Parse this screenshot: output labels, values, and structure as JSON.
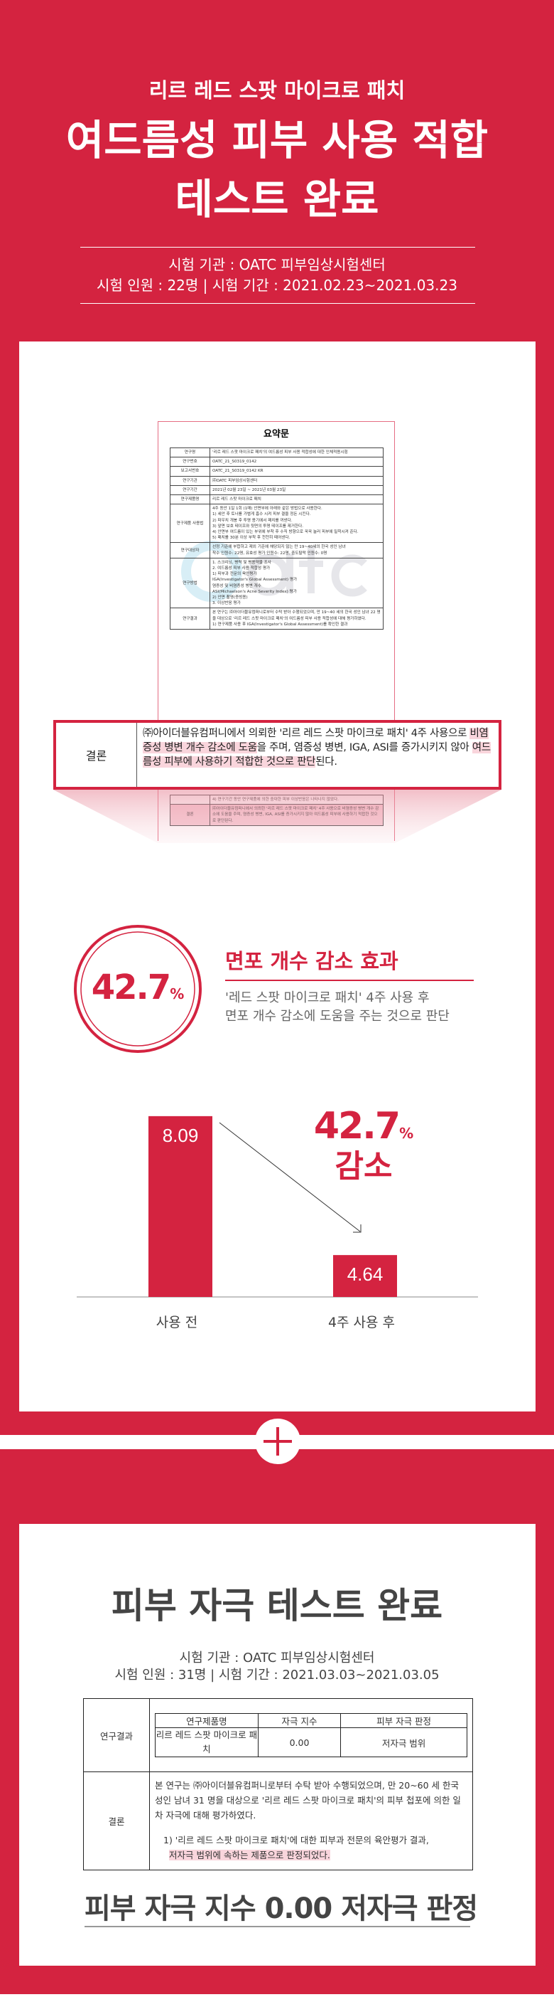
{
  "colors": {
    "accent": "#d42340",
    "text": "#444444",
    "highlight": "#f9d5dc"
  },
  "header": {
    "subtitle": "리르 레드 스팟 마이크로 패치",
    "title_line1": "여드름성 피부 사용 적합",
    "title_line2": "테스트 완료",
    "institution": "시험 기관 : OATC 피부임상시험센터",
    "participants_period": "시험 인원 : 22명 |  시험 기간 : 2021.02.23~2021.03.23"
  },
  "document": {
    "title": "요약문",
    "watermark": "oatc",
    "rows": [
      {
        "k": "연구명",
        "v": "'리르 레드 스팟 마이크로 패치'의 여드름성 피부 사용 적합성에 대한 인체적용시험"
      },
      {
        "k": "연구번호",
        "v": "OATC_21_S0319_0142"
      },
      {
        "k": "보고서번호",
        "v": "OATC_21_S0319_0142 KR"
      },
      {
        "k": "연구기관",
        "v": "㈜OATC 피부임상시험센터"
      },
      {
        "k": "연구기간",
        "v": "2021년 02월 23일 ~ 2021년 03월 23일"
      },
      {
        "k": "연구제품명",
        "v": "리르 레드 스팟 마이크로 패치"
      },
      {
        "k": "연구제품 사용법",
        "v": "4주 동안 1일 1회 (1매) 안면부에 아래와 같은 방법으로 사용한다.\n1) 세안 후 토너를 가볍게 흡수 시켜 피부 결을 정돈 시킨다.\n2) 파우치 개봉 후 투명 용기에서 패치를 꺼낸다.\n3) 앞면 보호 테이프와 뒷면의 투명 테이프를 제거한다.\n4) 안면부 여드름이 있는 부위에 부착 후 수직 방향으로 꾹꾹 눌러 피부에 밀착시켜 준다.\n5) 패치를 30분 이상 부착 후 천천히 떼어낸다."
      },
      {
        "k": "연구대상자",
        "v": "선정 기준에 부합하고 제외 기준에 해당되지 않는 만 19~40세의 한국 성인 남녀\n착수 인원수: 22명, 유효성 평가 인원수: 22명, 중도탈락 인원수: 0명"
      },
      {
        "k": "연구방법",
        "v": "1. 스크리닝, 병력 및 병용약물 조사\n2. 여드름성 피부 사용 적합성 평가\n 1) 피부과 전문의 육안평가\n   IGA(Investigator's Global Assessment) 평가\n   염증성 및 비염증성 병변 개수\n   ASI(Michaelson's Acne Severity Index) 평가\n 2) 안면 촬영(증빙용)\n3. 이상반응 평가"
      },
      {
        "k": "연구결과",
        "v": "본 연구는 ㈜아이더블유컴퍼니로부터 수탁 받아 수행되었으며, 만 19~40 세의 한국 성인 남녀 22 명을 대상으로 '리르 레드 스팟 마이크로 패치'의 여드름성 피부 사용 적합성에 대해 평가하였다.\n1) 연구제품 사용 후 IGA(Investigator's Global Assessment)를 확인한 결과\n\n\n\n\n\n\n4) 연구기간 동안 연구제품에 의한 중대한 피부 이상반응은 나타나지 않았다."
      },
      {
        "k": "결론",
        "v": "㈜아이더블유컴퍼니에서 의뢰한 '리르 레드 스팟 마이크로 패치' 4주 사용으로 비염증성 병변 개수 감소에 도움을 주며, 염증성 병변, IGA, ASI를 증가시키지 않아 여드름성 피부에 사용하기 적합한 것으로 판단된다."
      }
    ]
  },
  "conclusion_zoom": {
    "label": "결론",
    "p1": "㈜아이더블유컴퍼니에서 의뢰한 '리르 레드 스팟 마이크로 패치' 4주 사용으로 ",
    "h1": "비염증성 병변 개수 감소에 도움",
    "p2": "을 주며, 염증성 병변, IGA, ASI를 증가시키지 않아 ",
    "h2": "여드름성 피부에 사용하기 적합한 것으로 판단",
    "p3": "된다."
  },
  "effect": {
    "badge_value": "42.7",
    "badge_unit": "%",
    "title": "면포 개수 감소 효과",
    "desc1": "'레드 스팟 마이크로 패치' 4주 사용 후",
    "desc2": "면포 개수 감소에 도움을 주는 것으로 판단"
  },
  "chart_data": {
    "type": "bar",
    "categories": [
      "사용 전",
      "4주 사용 후"
    ],
    "values": [
      8.09,
      4.64
    ],
    "value_labels": [
      "8.09",
      "4.64"
    ],
    "annotation_value": "42.7",
    "annotation_unit": "%",
    "annotation_text": "감소",
    "ylim": [
      3.6,
      8.6
    ],
    "grid": false
  },
  "plus_icon": "plus-icon",
  "irritation": {
    "title": "피부 자극 테스트 완료",
    "institution": "시험 기관 : OATC 피부임상시험센터",
    "participants_period": "시험 인원 : 31명 |  시험 기간 : 2021.03.03~2021.03.05",
    "results_label": "연구결과",
    "table_headers": [
      "연구제품명",
      "자극 지수",
      "피부 자극 판정"
    ],
    "table_row": [
      "리르 레드 스팟 마이크로 패치",
      "0.00",
      "저자극 범위"
    ],
    "conclusion_label": "결론",
    "conclusion_text": "본 연구는 ㈜아이더블유컴퍼니로부터 수탁 받아 수행되었으며, 만 20~60 세 한국 성인 남녀 31 명을 대상으로 '리르 레드 스팟 마이크로 패치'의 피부 첩포에 의한 일차 자극에 대해 평가하였다.",
    "result_item": "1) '리르 레드 스팟 마이크로 패치'에 대한 피부과 전문의 육안평가 결과,",
    "result_highlight": "저자극 범위에 속하는 제품으로 판정되었다.",
    "summary": "피부 자극 지수 0.00  저자극 판정"
  }
}
